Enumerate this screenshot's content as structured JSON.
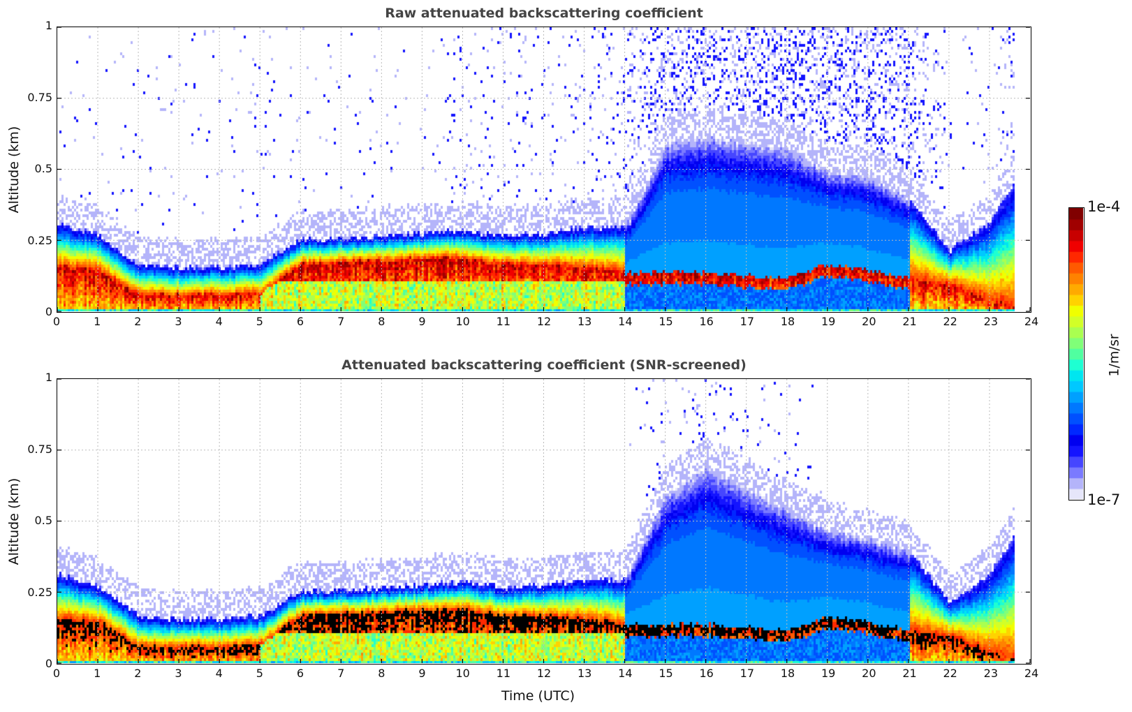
{
  "chart_data": [
    {
      "type": "heatmap",
      "title": "Raw attenuated backscattering coefficient",
      "xlabel": "Time (UTC)",
      "ylabel": "Altitude (km)",
      "xlim": [
        0,
        24
      ],
      "ylim": [
        0,
        1
      ],
      "xticks": [
        "0",
        "1",
        "2",
        "3",
        "4",
        "5",
        "6",
        "7",
        "8",
        "9",
        "10",
        "11",
        "12",
        "13",
        "14",
        "15",
        "16",
        "17",
        "18",
        "19",
        "20",
        "21",
        "22",
        "23",
        "24"
      ],
      "yticks": [
        "0",
        "0.25",
        "0.5",
        "0.75",
        "1"
      ],
      "grid": true,
      "data_end_hour": 23.6,
      "hours": [
        0,
        1,
        2,
        3,
        4,
        5,
        6,
        7,
        8,
        9,
        10,
        11,
        12,
        13,
        14,
        15,
        16,
        17,
        18,
        19,
        20,
        21,
        22,
        23,
        23.6
      ],
      "layer_top_km": [
        0.32,
        0.27,
        0.17,
        0.16,
        0.16,
        0.17,
        0.26,
        0.26,
        0.27,
        0.28,
        0.29,
        0.27,
        0.28,
        0.3,
        0.3,
        0.6,
        0.62,
        0.6,
        0.58,
        0.5,
        0.48,
        0.4,
        0.22,
        0.32,
        0.46
      ],
      "strong_layer_km": [
        0.16,
        0.15,
        0.06,
        0.06,
        0.06,
        0.07,
        0.17,
        0.18,
        0.18,
        0.19,
        0.19,
        0.17,
        0.17,
        0.16,
        0.14,
        0.14,
        0.14,
        0.13,
        0.12,
        0.17,
        0.15,
        0.12,
        0.1,
        0.04,
        0.02
      ],
      "noise_above": [
        0.05,
        0.05,
        0.05,
        0.05,
        0.05,
        0.05,
        0.05,
        0.05,
        0.05,
        0.05,
        0.1,
        0.15,
        0.1,
        0.1,
        0.3,
        0.8,
        0.8,
        0.85,
        0.85,
        0.8,
        0.75,
        0.7,
        0.02,
        0.05,
        0.5
      ],
      "saturated": false,
      "colorbar": {
        "min_label": "1e-7",
        "max_label": "1e-4",
        "unit": "1/m/sr",
        "scale": "log"
      }
    },
    {
      "type": "heatmap",
      "title": "Attenuated backscattering coefficient (SNR-screened)",
      "xlabel": "Time (UTC)",
      "ylabel": "Altitude (km)",
      "xlim": [
        0,
        24
      ],
      "ylim": [
        0,
        1
      ],
      "xticks": [
        "0",
        "1",
        "2",
        "3",
        "4",
        "5",
        "6",
        "7",
        "8",
        "9",
        "10",
        "11",
        "12",
        "13",
        "14",
        "15",
        "16",
        "17",
        "18",
        "19",
        "20",
        "21",
        "22",
        "23",
        "24"
      ],
      "yticks": [
        "0",
        "0.25",
        "0.5",
        "0.75",
        "1"
      ],
      "grid": true,
      "data_end_hour": 23.6,
      "hours": [
        0,
        1,
        2,
        3,
        4,
        5,
        6,
        7,
        8,
        9,
        10,
        11,
        12,
        13,
        14,
        15,
        16,
        17,
        18,
        19,
        20,
        21,
        22,
        23,
        23.6
      ],
      "layer_top_km": [
        0.32,
        0.27,
        0.17,
        0.16,
        0.16,
        0.17,
        0.26,
        0.26,
        0.27,
        0.28,
        0.29,
        0.27,
        0.28,
        0.3,
        0.3,
        0.6,
        0.7,
        0.62,
        0.55,
        0.47,
        0.45,
        0.4,
        0.22,
        0.32,
        0.46
      ],
      "strong_layer_km": [
        0.16,
        0.15,
        0.06,
        0.06,
        0.06,
        0.07,
        0.17,
        0.18,
        0.18,
        0.19,
        0.19,
        0.17,
        0.17,
        0.16,
        0.14,
        0.14,
        0.14,
        0.13,
        0.12,
        0.17,
        0.15,
        0.12,
        0.1,
        0.04,
        0.02
      ],
      "noise_above": [
        0,
        0,
        0,
        0,
        0,
        0,
        0,
        0,
        0,
        0,
        0,
        0,
        0,
        0,
        0,
        0.15,
        0.2,
        0.15,
        0.1,
        0,
        0,
        0,
        0,
        0,
        0
      ],
      "saturated": true,
      "colorbar": {
        "min_label": "1e-7",
        "max_label": "1e-4",
        "unit": "1/m/sr",
        "scale": "log"
      }
    }
  ]
}
